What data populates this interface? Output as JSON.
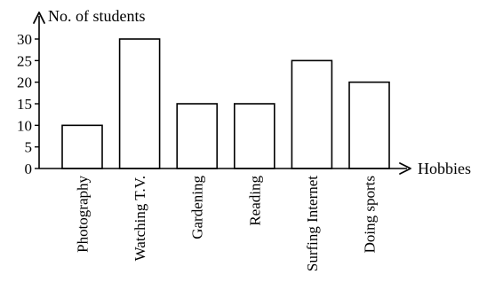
{
  "chart_data": {
    "type": "bar",
    "categories": [
      "Photography",
      "Watching T.V.",
      "Gardening",
      "Reading",
      "Surfing Internet",
      "Doing sports"
    ],
    "values": [
      10,
      30,
      15,
      15,
      25,
      20
    ],
    "ylabel": "No. of students",
    "xlabel": "Hobbies",
    "ylim": [
      0,
      30
    ],
    "yticks": [
      0,
      5,
      10,
      15,
      20,
      25,
      30
    ],
    "grid": false,
    "legend": "none",
    "bar_fill": "#ffffff",
    "bar_stroke": "#000000"
  }
}
